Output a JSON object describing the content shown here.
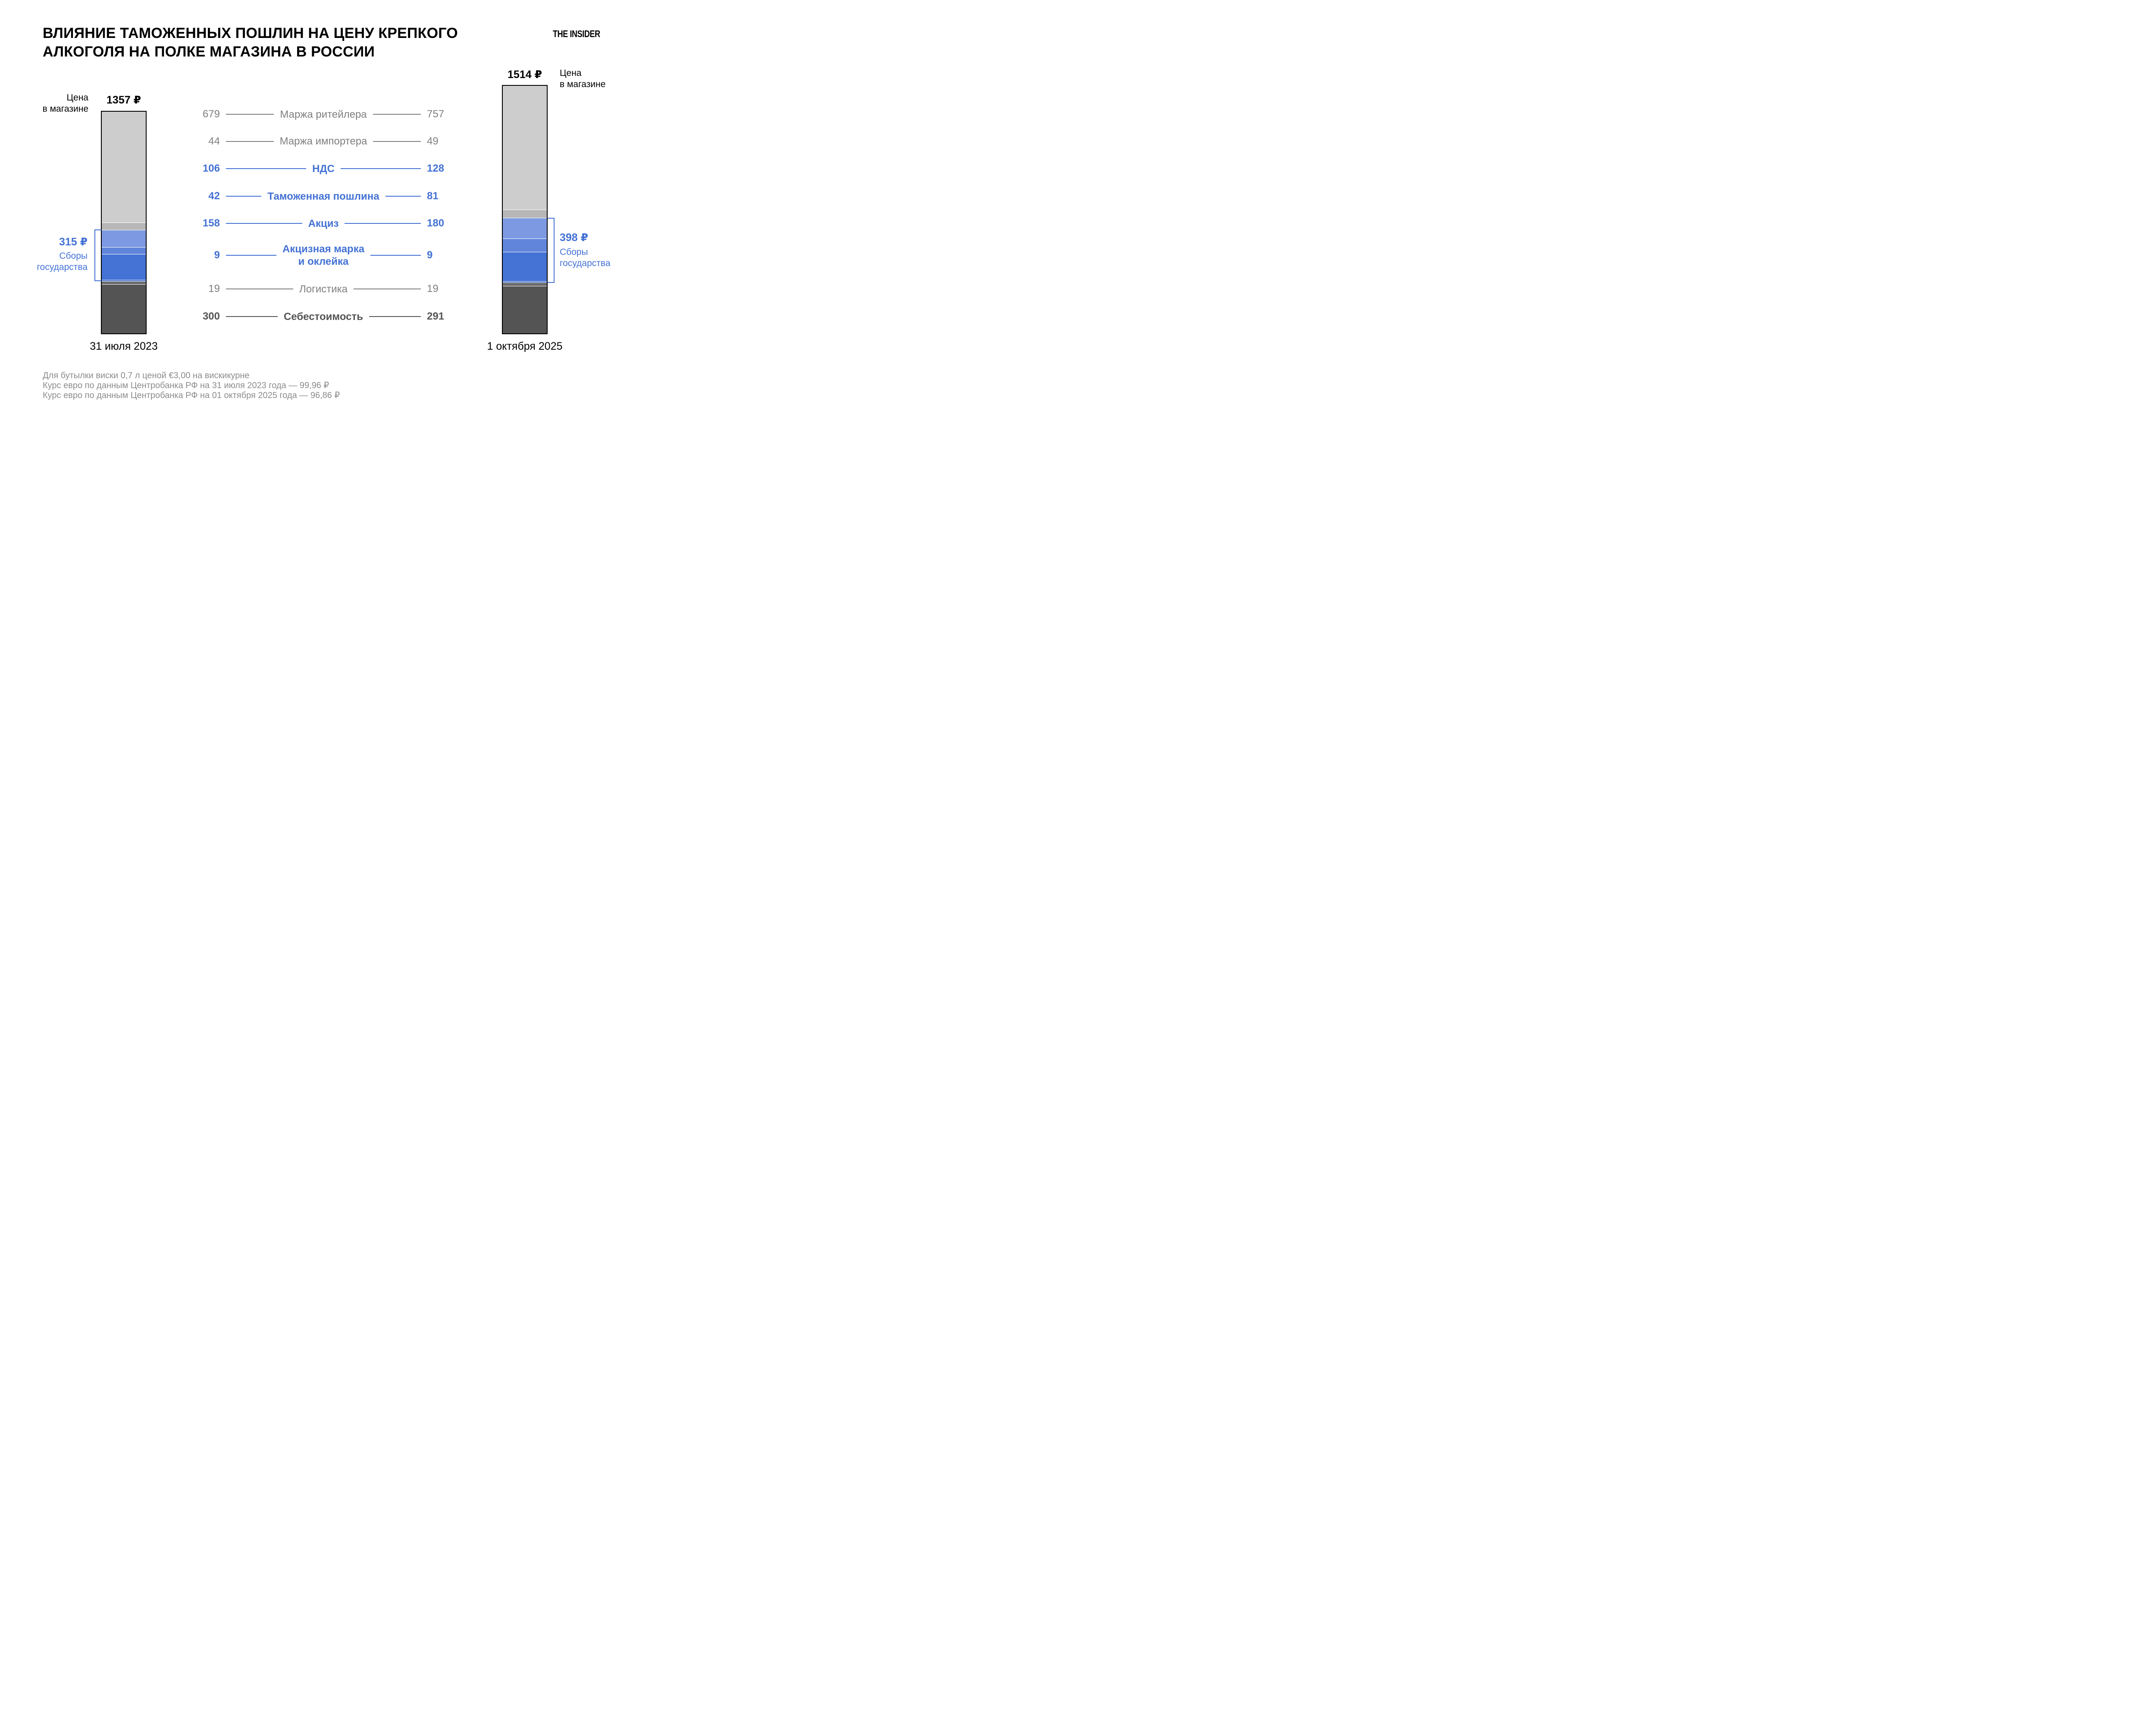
{
  "title_line1": "ВЛИЯНИЕ ТАМОЖЕННЫХ ПОШЛИН НА ЦЕНУ КРЕПКОГО",
  "title_line2": "АЛКОГОЛЯ НА ПОЛКЕ МАГАЗИНА В РОССИИ",
  "logo_text": "THE INSIDER",
  "store_price_label_line1": "Цена",
  "store_price_label_line2": "в магазине",
  "state_fees_label_line1": "Сборы",
  "state_fees_label_line2": "государства",
  "chart_data": {
    "type": "bar",
    "subtype": "stacked_column_comparison",
    "unit": "₽",
    "title": "Влияние таможенных пошлин на цену крепкого алкоголя на полке магазина в России",
    "categories": [
      "Маржа ритейлера",
      "Маржа импортера",
      "НДС",
      "Таможенная пошлина",
      "Акциз",
      "Акцизная марка и оклейка",
      "Логистика",
      "Себестоимость"
    ],
    "category_lines": [
      [
        "Маржа ритейлера"
      ],
      [
        "Маржа импортера"
      ],
      [
        "НДС"
      ],
      [
        "Таможенная пошлина"
      ],
      [
        "Акциз"
      ],
      [
        "Акцизная марка",
        "и оклейка"
      ],
      [
        "Логистика"
      ],
      [
        "Себестоимость"
      ]
    ],
    "row_styles": [
      "gray",
      "gray",
      "blue",
      "blue",
      "blue",
      "blue",
      "gray",
      "dark"
    ],
    "segment_colors": [
      "#CDCDCD",
      "#B7B7B7",
      "#7D99E2",
      "#6185DB",
      "#4573D5",
      "#2D5BC4",
      "#6B6B6B",
      "#545454"
    ],
    "state_fee_category_indexes": [
      2,
      3,
      4,
      5
    ],
    "series": [
      {
        "date": "31 июля 2023",
        "total": 1357,
        "total_label": "1357 ₽",
        "values": [
          679,
          44,
          106,
          42,
          158,
          9,
          19,
          300
        ],
        "state_fees_total": 315,
        "state_fees_label": "315 ₽"
      },
      {
        "date": "1 октября 2025",
        "total": 1514,
        "total_label": "1514 ₽",
        "values": [
          757,
          49,
          128,
          81,
          180,
          9,
          19,
          291
        ],
        "state_fees_total": 398,
        "state_fees_label": "398 ₽"
      }
    ],
    "colors": {
      "accent_blue_text": "#4472D4",
      "gray_text": "#7F7F7F",
      "dark_text": "#555555",
      "footnote_gray": "#8C8C8C"
    },
    "legend_position": "center-between-bars",
    "grid": false
  },
  "footnotes": [
    "Для бутылки виски 0,7 л ценой €3,00 на вискикурне",
    "Курс евро по данным Центробанка РФ на 31 июля 2023 года — 99,96 ₽",
    "Курс евро по данным Центробанка РФ на 01 октября 2025 года — 96,86 ₽"
  ]
}
